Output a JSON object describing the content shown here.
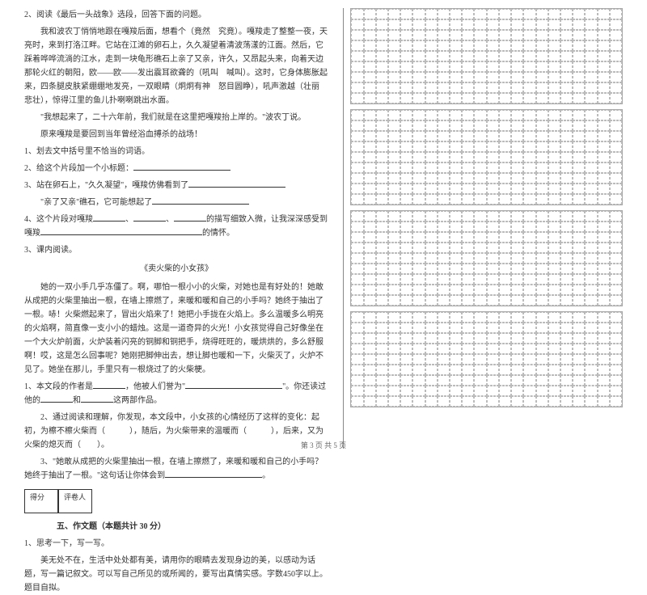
{
  "q2_header": "2、阅读《最后一头战象》选段，回答下面的问题。",
  "passage1_p1": "我和波农丁悄悄地跟在嘎羧后面，想看个（竟然　究竟）。嘎羧走了整整一夜，天亮时，来到打洛江畔。它站在江滩的卵石上，久久凝望着清波荡漾的江面。然后，它踩着哗哗流淌的江水，走到一块龟形礁石上亲了又亲，许久，又昂起头来，向着天边那轮火红的朝阳，欧——欧——发出震耳欲聋的（吼叫　喊叫）。这时，它身体膨胀起来，四条腿皮肤紧绷绷地发亮，一双眼睛（炯炯有神　怒目圆睁），吼声激越（壮丽　悲壮），惊得江里的鱼儿扑喇喇跳出水面。",
  "passage1_p2": "\"我想起来了，二十六年前，我们就是在这里把嘎羧抬上岸的。\"波农丁说。",
  "passage1_p3": "原来嘎羧是要回到当年曾经浴血搏杀的战场！",
  "sub1": "1、划去文中括号里不恰当的词语。",
  "sub2": "2、给这个片段加一个小标题：",
  "sub3": "3、站在卵石上，\"久久凝望\"，嘎羧仿佛看到了",
  "sub3b": "\"亲了又亲\"礁石，它可能想起了",
  "sub4": "4、这个片段对嘎羧",
  "sub4b": "的描写细致入微，让我深深感受到嘎羧",
  "sub4c": "的情怀。",
  "q3_header": "3、课内阅读。",
  "story_title": "《卖火柴的小女孩》",
  "passage2": "她的一双小手几乎冻僵了。啊，哪怕一根小小的火柴，对她也是有好处的！她敢从成把的火柴里抽出一根，在墙上擦燃了，来暖和暖和自己的小手吗？她终于抽出了一根。哧！火柴燃起来了，冒出火焰来了！她把小手拢在火焰上。多么温暖多么明亮的火焰啊，简直像一支小小的蜡烛。这是一道奇异的火光！小女孩觉得自己好像坐在一个大火炉前面，火炉装着闪亮的铜脚和铜把手，烧得旺旺的，暖烘烘的，多么舒服啊！哎，这是怎么回事呢？她刚把脚伸出去，想让脚也暖和一下，火柴灭了，火炉不见了。她坐在那儿，手里只有一根烧过了的火柴梗。",
  "p2_q1": "1、本文段的作者是",
  "p2_q1b": "，他被人们誉为\"",
  "p2_q1c": "\"。你还读过他的",
  "p2_q1d": "和",
  "p2_q1e": "这两部作品。",
  "p2_q2": "2、通过阅读和理解，你发现，本文段中，小女孩的心情经历了这样的变化：起初，为檫不檫火柴而（　　　），随后，为火柴带来的温暖而（　　　），后来，又为火柴的熄灭而（　　）。",
  "p2_q3": "3、\"她敢从成把的火柴里抽出一根，在墙上擦燃了，来暖和暖和自己的小手吗？她终于抽出了一根。\"这句话让你体会到",
  "score_label1": "得分",
  "score_label2": "评卷人",
  "section5": "五、作文题（本题共计 30 分）",
  "essay_q": "1、思考一下，写一写。",
  "essay_prompt": "美无处不在，生活中处处都有美，请用你的眼睛去发现身边的美，以感动为话题，写一篇记叙文。可以写自己所见的或所闻的，要写出真情实感。字数450字以上。题目自拟。",
  "footer": "第 3 页 共 5 页",
  "grid_rows": 9,
  "grid_cols": 22,
  "grid_count": 4,
  "colors": {
    "text": "#333",
    "border": "#aaa",
    "dash": "#bbb",
    "divider": "#888"
  }
}
